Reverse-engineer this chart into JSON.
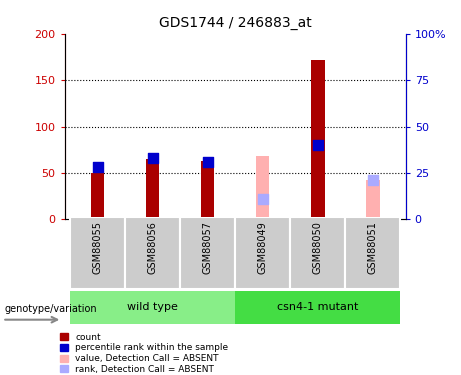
{
  "title": "GDS1744 / 246883_at",
  "samples": [
    "GSM88055",
    "GSM88056",
    "GSM88057",
    "GSM88049",
    "GSM88050",
    "GSM88051"
  ],
  "groups": {
    "wild type": [
      0,
      1,
      2
    ],
    "csn4-1 mutant": [
      3,
      4,
      5
    ]
  },
  "count_values": [
    50,
    65,
    63,
    null,
    172,
    null
  ],
  "rank_pct": [
    28,
    33,
    31,
    null,
    40,
    null
  ],
  "count_absent": [
    null,
    null,
    null,
    68,
    null,
    42
  ],
  "rank_absent_pct": [
    null,
    null,
    null,
    11,
    null,
    21
  ],
  "absent_flags": [
    false,
    false,
    false,
    true,
    false,
    true
  ],
  "left_ylim": [
    0,
    200
  ],
  "right_ylim": [
    0,
    100
  ],
  "left_yticks": [
    0,
    50,
    100,
    150,
    200
  ],
  "right_yticks": [
    0,
    25,
    50,
    75,
    100
  ],
  "right_yticklabels": [
    "0",
    "25",
    "50",
    "75",
    "100%"
  ],
  "left_ytick_color": "#cc0000",
  "right_ytick_color": "#0000cc",
  "bar_color_count": "#aa0000",
  "bar_color_rank": "#0000cc",
  "bar_color_count_absent": "#ffb0b0",
  "bar_color_rank_absent": "#aaaaff",
  "group_color_wt": "#88ee88",
  "group_color_mut": "#44dd44",
  "bar_width": 0.25,
  "dot_size": 60,
  "background_label": "#cccccc",
  "legend_items": [
    {
      "label": "count",
      "color": "#aa0000"
    },
    {
      "label": "percentile rank within the sample",
      "color": "#0000cc"
    },
    {
      "label": "value, Detection Call = ABSENT",
      "color": "#ffb0b0"
    },
    {
      "label": "rank, Detection Call = ABSENT",
      "color": "#aaaaff"
    }
  ]
}
